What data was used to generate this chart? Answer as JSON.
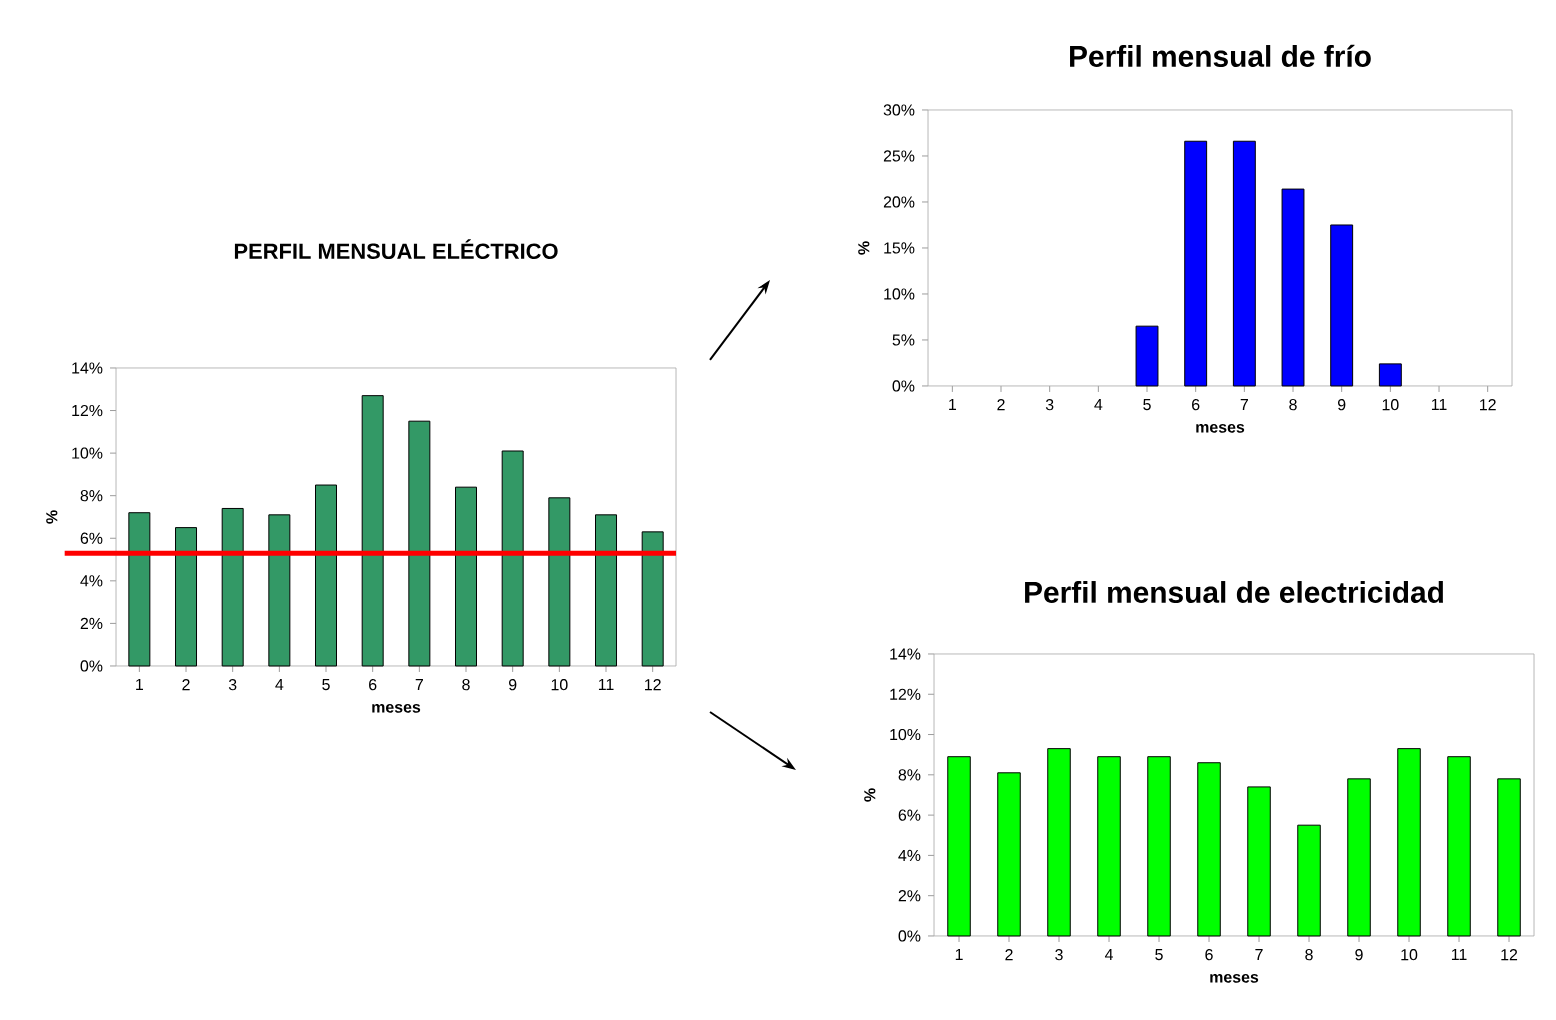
{
  "chart_data": [
    {
      "type": "bar",
      "title": "PERFIL MENSUAL ELÉCTRICO",
      "xlabel": "meses",
      "ylabel": "%",
      "categories": [
        "1",
        "2",
        "3",
        "4",
        "5",
        "6",
        "7",
        "8",
        "9",
        "10",
        "11",
        "12"
      ],
      "values": [
        7.2,
        6.5,
        7.4,
        7.1,
        8.5,
        12.7,
        11.5,
        8.4,
        10.1,
        7.9,
        7.1,
        6.3
      ],
      "color": "#339966",
      "ylim": [
        0,
        14
      ],
      "yticks": [
        {
          "value": 0,
          "label": "0%"
        },
        {
          "value": 2,
          "label": "2%"
        },
        {
          "value": 4,
          "label": "4%"
        },
        {
          "value": 6,
          "label": "6%"
        },
        {
          "value": 8,
          "label": "8%"
        },
        {
          "value": 10,
          "label": "10%"
        },
        {
          "value": 12,
          "label": "12%"
        },
        {
          "value": 14,
          "label": "14%"
        }
      ],
      "ref_lines": [
        {
          "axis": "y",
          "value": 5.3,
          "color": "#ff0000"
        }
      ]
    },
    {
      "type": "bar",
      "title": "Perfil mensual de frío",
      "xlabel": "meses",
      "ylabel": "%",
      "categories": [
        "1",
        "2",
        "3",
        "4",
        "5",
        "6",
        "7",
        "8",
        "9",
        "10",
        "11",
        "12"
      ],
      "values": [
        0,
        0,
        0,
        0,
        6.5,
        26.6,
        26.6,
        21.4,
        17.5,
        2.4,
        0,
        0
      ],
      "color": "#0000ff",
      "ylim": [
        0,
        30
      ],
      "yticks": [
        {
          "value": 0,
          "label": "0%"
        },
        {
          "value": 5,
          "label": "5%"
        },
        {
          "value": 10,
          "label": "10%"
        },
        {
          "value": 15,
          "label": "15%"
        },
        {
          "value": 20,
          "label": "20%"
        },
        {
          "value": 25,
          "label": "25%"
        },
        {
          "value": 30,
          "label": "30%"
        }
      ]
    },
    {
      "type": "bar",
      "title": "Perfil mensual de electricidad",
      "xlabel": "meses",
      "ylabel": "%",
      "categories": [
        "1",
        "2",
        "3",
        "4",
        "5",
        "6",
        "7",
        "8",
        "9",
        "10",
        "11",
        "12"
      ],
      "values": [
        8.9,
        8.1,
        9.3,
        8.9,
        8.9,
        8.6,
        7.4,
        5.5,
        7.8,
        9.3,
        8.9,
        7.8
      ],
      "color": "#00ff00",
      "ylim": [
        0,
        14
      ],
      "yticks": [
        {
          "value": 0,
          "label": "0%"
        },
        {
          "value": 2,
          "label": "2%"
        },
        {
          "value": 4,
          "label": "4%"
        },
        {
          "value": 6,
          "label": "6%"
        },
        {
          "value": 8,
          "label": "8%"
        },
        {
          "value": 10,
          "label": "10%"
        },
        {
          "value": 12,
          "label": "12%"
        },
        {
          "value": 14,
          "label": "14%"
        }
      ]
    }
  ]
}
